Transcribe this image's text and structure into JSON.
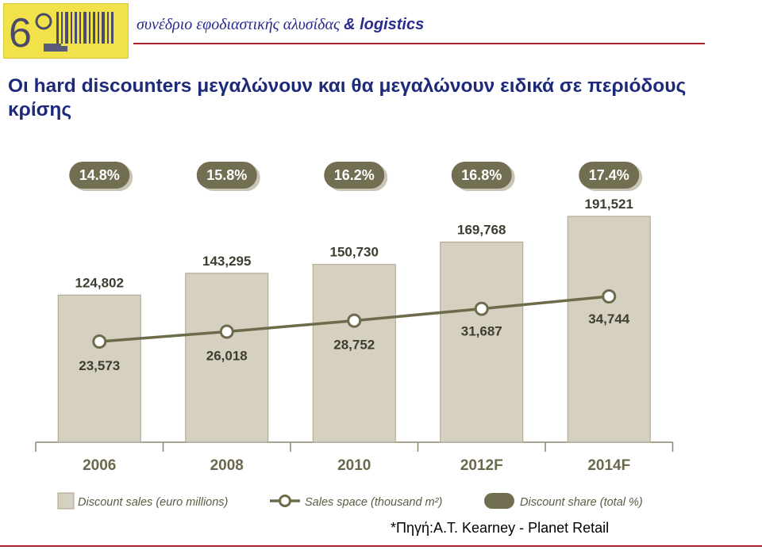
{
  "header": {
    "logo_digit": "6",
    "title": "συνέδριο εφοδιαστικής αλυσίδας",
    "title_suffix": "& logistics"
  },
  "page_title": "Οι hard discounters μεγαλώνουν και θα μεγαλώνουν ειδικά σε περιόδους κρίσης",
  "source": "*Πηγή:A.T. Kearney - Planet Retail",
  "colors": {
    "bar_fill": "#d5d0c0",
    "bar_edge": "#a8a28d",
    "line": "#6e6b4a",
    "badge": "#716e52",
    "text_dark": "#3e3d30",
    "chart_bg": "#ffffff"
  },
  "chart_data": {
    "type": "bar",
    "categories": [
      "2006",
      "2008",
      "2010",
      "2012F",
      "2014F"
    ],
    "series": [
      {
        "name": "Discount sales (euro millions)",
        "type": "bar",
        "values": [
          124802,
          143295,
          150730,
          169768,
          191521
        ],
        "labels": [
          "124,802",
          "143,295",
          "150,730",
          "169,768",
          "191,521"
        ]
      },
      {
        "name": "Sales space (thousand m²)",
        "type": "line",
        "values": [
          23573,
          26018,
          28752,
          31687,
          34744
        ],
        "labels": [
          "23,573",
          "26,018",
          "28,752",
          "31,687",
          "34,744"
        ]
      },
      {
        "name": "Discount share (total %)",
        "type": "badge",
        "values": [
          14.8,
          15.8,
          16.2,
          16.8,
          17.4
        ],
        "labels": [
          "14.8%",
          "15.8%",
          "16.2%",
          "16.8%",
          "17.4%"
        ]
      }
    ],
    "legend_position": "bottom",
    "grid": false
  }
}
